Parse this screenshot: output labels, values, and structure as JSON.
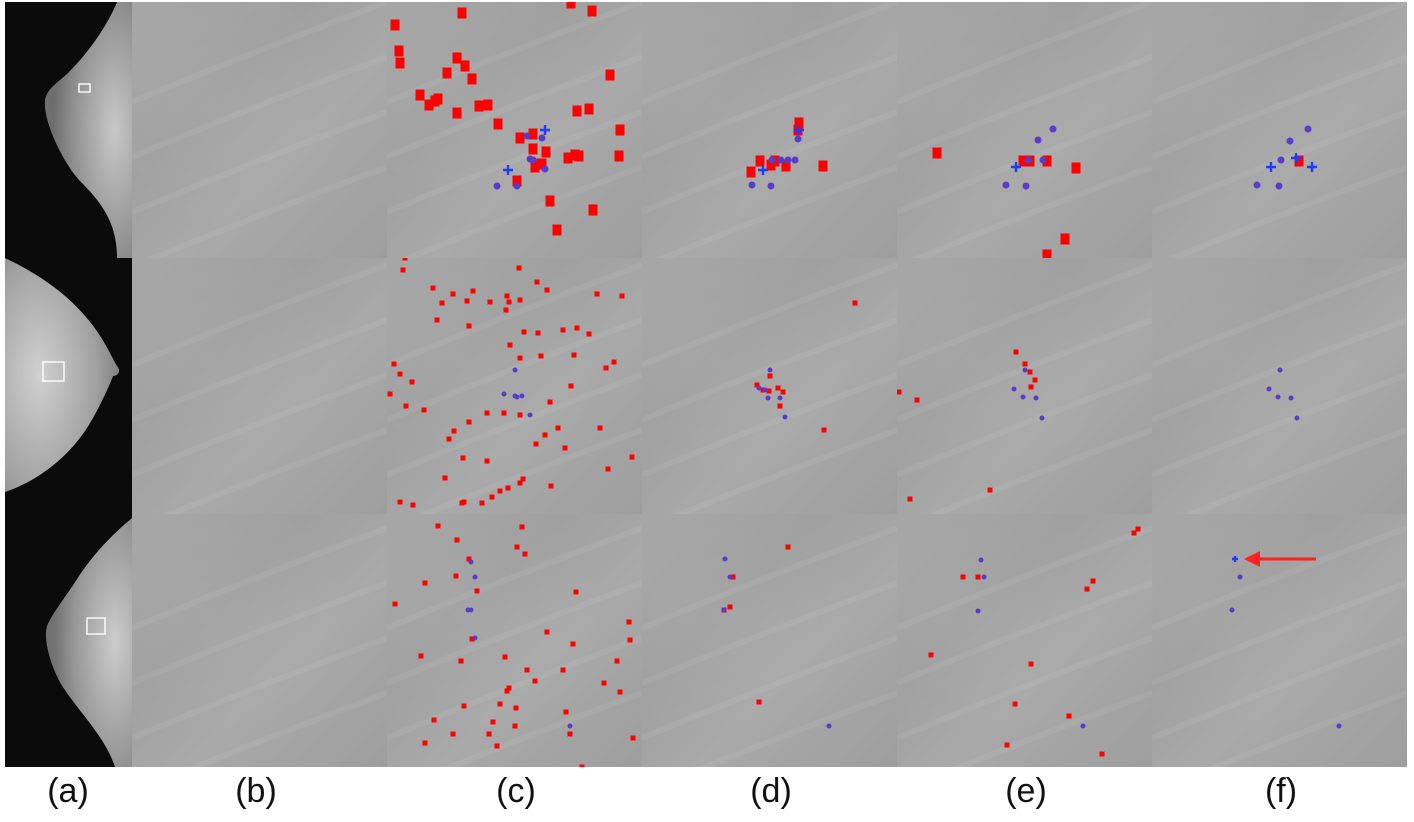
{
  "colors": {
    "candidate": "#ff0000",
    "truth_circle": "#5a3cc8",
    "truth_cross": "#1e3cff",
    "arrow": "#ff2020"
  },
  "labels": [
    "(a)",
    "(b)",
    "(c)",
    "(d)",
    "(e)",
    "(f)"
  ],
  "rows": [
    {
      "c": {
        "red": [
          [
            8,
            22
          ],
          [
            12,
            48
          ],
          [
            13,
            60
          ],
          [
            75,
            10
          ],
          [
            70,
            55
          ],
          [
            60,
            70
          ],
          [
            33,
            92
          ],
          [
            42,
            102
          ],
          [
            51,
            96
          ],
          [
            70,
            110
          ],
          [
            78,
            63
          ],
          [
            48,
            98
          ],
          [
            85,
            76
          ],
          [
            101,
            102
          ],
          [
            92,
            103
          ],
          [
            111,
            121
          ],
          [
            133,
            135
          ],
          [
            146,
            146
          ],
          [
            159,
            149
          ],
          [
            190,
            108
          ],
          [
            146,
            131
          ],
          [
            154,
            161
          ],
          [
            181,
            155
          ],
          [
            155,
            161
          ],
          [
            192,
            153
          ],
          [
            163,
            198
          ],
          [
            223,
            72
          ],
          [
            232,
            153
          ],
          [
            188,
            152
          ],
          [
            170,
            227
          ],
          [
            202,
            106
          ],
          [
            206,
            207
          ],
          [
            233,
            127
          ],
          [
            130,
            178
          ],
          [
            184,
            0
          ],
          [
            205,
            8
          ],
          [
            148,
            164
          ]
        ],
        "circ": [
          [
            155,
            136
          ],
          [
            146,
            158
          ],
          [
            143,
            157
          ],
          [
            158,
            167
          ],
          [
            140,
            134
          ],
          [
            110,
            184
          ],
          [
            130,
            184
          ]
        ],
        "cross": [
          [
            158,
            128
          ],
          [
            121,
            168
          ]
        ]
      },
      "d": {
        "red": [
          [
            157,
            120
          ],
          [
            109,
            169
          ],
          [
            118,
            158
          ],
          [
            129,
            162
          ],
          [
            144,
            163
          ],
          [
            156,
            127
          ],
          [
            181,
            163
          ],
          [
            133,
            158
          ]
        ],
        "circ": [
          [
            156,
            137
          ],
          [
            146,
            158
          ],
          [
            153,
            158
          ],
          [
            130,
            158
          ],
          [
            139,
            158
          ],
          [
            110,
            183
          ],
          [
            129,
            184
          ]
        ],
        "cross": [
          [
            157,
            128
          ],
          [
            121,
            168
          ]
        ]
      },
      "e": {
        "red": [
          [
            40,
            150
          ],
          [
            126,
            158
          ],
          [
            133,
            158
          ],
          [
            150,
            158
          ],
          [
            179,
            165
          ],
          [
            168,
            236
          ],
          [
            150,
            252
          ]
        ],
        "circ": [
          [
            156,
            127
          ],
          [
            141,
            138
          ],
          [
            131,
            158
          ],
          [
            146,
            158
          ],
          [
            109,
            183
          ],
          [
            129,
            184
          ]
        ],
        "cross": [
          [
            119,
            165
          ]
        ]
      },
      "f": {
        "red": [
          [
            147,
            158
          ]
        ],
        "circ": [
          [
            156,
            127
          ],
          [
            138,
            139
          ],
          [
            129,
            158
          ],
          [
            105,
            183
          ],
          [
            127,
            184
          ]
        ],
        "cross": [
          [
            119,
            165
          ],
          [
            144,
            156
          ],
          [
            160,
            165
          ]
        ]
      }
    },
    {
      "c": {
        "red": [
          [
            18,
            0
          ],
          [
            16,
            12
          ],
          [
            46,
            30
          ],
          [
            66,
            36
          ],
          [
            55,
            45
          ],
          [
            86,
            33
          ],
          [
            132,
            10
          ],
          [
            120,
            38
          ],
          [
            150,
            24
          ],
          [
            119,
            52
          ],
          [
            133,
            42
          ],
          [
            160,
            32
          ],
          [
            210,
            36
          ],
          [
            235,
            38
          ],
          [
            50,
            62
          ],
          [
            82,
            68
          ],
          [
            137,
            74
          ],
          [
            151,
            75
          ],
          [
            176,
            72
          ],
          [
            190,
            70
          ],
          [
            202,
            76
          ],
          [
            123,
            87
          ],
          [
            133,
            100
          ],
          [
            154,
            98
          ],
          [
            7,
            106
          ],
          [
            13,
            116
          ],
          [
            25,
            124
          ],
          [
            3,
            136
          ],
          [
            19,
            148
          ],
          [
            37,
            152
          ],
          [
            187,
            97
          ],
          [
            227,
            104
          ],
          [
            219,
            110
          ],
          [
            184,
            128
          ],
          [
            163,
            144
          ],
          [
            133,
            157
          ],
          [
            117,
            155
          ],
          [
            100,
            155
          ],
          [
            82,
            164
          ],
          [
            67,
            173
          ],
          [
            62,
            181
          ],
          [
            158,
            177
          ],
          [
            171,
            170
          ],
          [
            213,
            170
          ],
          [
            149,
            186
          ],
          [
            76,
            200
          ],
          [
            178,
            190
          ],
          [
            100,
            203
          ],
          [
            245,
            199
          ],
          [
            221,
            211
          ],
          [
            133,
            225
          ],
          [
            164,
            228
          ],
          [
            121,
            230
          ],
          [
            105,
            239
          ],
          [
            13,
            244
          ],
          [
            26,
            247
          ],
          [
            77,
            244
          ],
          [
            95,
            245
          ],
          [
            136,
            221
          ],
          [
            58,
            220
          ],
          [
            75,
            245
          ],
          [
            113,
            233
          ],
          [
            80,
            43
          ],
          [
            103,
            44
          ],
          [
            122,
            44
          ]
        ],
        "circ": [
          [
            128,
            112
          ],
          [
            117,
            136
          ],
          [
            128,
            138
          ],
          [
            143,
            157
          ],
          [
            135,
            138
          ],
          [
            130,
            139
          ]
        ],
        "cross": []
      },
      "d": {
        "red": [
          [
            213,
            45
          ],
          [
            115,
            127
          ],
          [
            121,
            132
          ],
          [
            136,
            130
          ],
          [
            141,
            134
          ],
          [
            128,
            118
          ],
          [
            138,
            148
          ],
          [
            127,
            133
          ],
          [
            182,
            172
          ]
        ],
        "circ": [
          [
            128,
            112
          ],
          [
            123,
            132
          ],
          [
            126,
            140
          ],
          [
            138,
            140
          ],
          [
            143,
            159
          ],
          [
            117,
            130
          ]
        ],
        "cross": []
      },
      "e": {
        "red": [
          [
            119,
            94
          ],
          [
            128,
            106
          ],
          [
            133,
            114
          ],
          [
            138,
            122
          ],
          [
            2,
            134
          ],
          [
            20,
            142
          ],
          [
            13,
            241
          ],
          [
            93,
            232
          ],
          [
            134,
            129
          ]
        ],
        "circ": [
          [
            128,
            112
          ],
          [
            117,
            131
          ],
          [
            126,
            139
          ],
          [
            139,
            140
          ],
          [
            145,
            160
          ]
        ],
        "cross": []
      },
      "f": {
        "red": [],
        "circ": [
          [
            128,
            112
          ],
          [
            117,
            131
          ],
          [
            126,
            139
          ],
          [
            139,
            140
          ],
          [
            145,
            160
          ]
        ],
        "cross": []
      }
    },
    {
      "c": {
        "red": [
          [
            51,
            12
          ],
          [
            70,
            26
          ],
          [
            69,
            62
          ],
          [
            82,
            45
          ],
          [
            8,
            90
          ],
          [
            38,
            69
          ],
          [
            130,
            33
          ],
          [
            138,
            40
          ],
          [
            135,
            13
          ],
          [
            90,
            77
          ],
          [
            189,
            78
          ],
          [
            242,
            108
          ],
          [
            243,
            126
          ],
          [
            160,
            118
          ],
          [
            186,
            130
          ],
          [
            230,
            147
          ],
          [
            34,
            142
          ],
          [
            74,
            147
          ],
          [
            85,
            125
          ],
          [
            118,
            143
          ],
          [
            140,
            156
          ],
          [
            148,
            167
          ],
          [
            122,
            174
          ],
          [
            176,
            156
          ],
          [
            120,
            177
          ],
          [
            113,
            190
          ],
          [
            77,
            192
          ],
          [
            47,
            206
          ],
          [
            102,
            220
          ],
          [
            129,
            194
          ],
          [
            106,
            208
          ],
          [
            128,
            212
          ],
          [
            110,
            232
          ],
          [
            66,
            220
          ],
          [
            38,
            229
          ],
          [
            233,
            178
          ],
          [
            246,
            224
          ],
          [
            183,
            220
          ],
          [
            195,
            253
          ],
          [
            217,
            169
          ],
          [
            179,
            198
          ]
        ],
        "circ": [
          [
            84,
            48
          ],
          [
            88,
            63
          ],
          [
            81,
            96
          ],
          [
            88,
            124
          ],
          [
            84,
            96
          ],
          [
            183,
            212
          ]
        ],
        "cross": []
      },
      "d": {
        "red": [
          [
            146,
            33
          ],
          [
            117,
            188
          ],
          [
            88,
            93
          ],
          [
            91,
            63
          ],
          [
            82,
            96
          ]
        ],
        "circ": [
          [
            83,
            45
          ],
          [
            88,
            63
          ],
          [
            82,
            96
          ],
          [
            187,
            212
          ]
        ],
        "cross": []
      },
      "e": {
        "red": [
          [
            66,
            63
          ],
          [
            81,
            63
          ],
          [
            34,
            141
          ],
          [
            134,
            150
          ],
          [
            118,
            190
          ],
          [
            172,
            202
          ],
          [
            110,
            231
          ],
          [
            205,
            240
          ],
          [
            196,
            67
          ],
          [
            190,
            75
          ],
          [
            241,
            15
          ],
          [
            237,
            19
          ]
        ],
        "circ": [
          [
            84,
            46
          ],
          [
            87,
            63
          ],
          [
            81,
            97
          ],
          [
            186,
            212
          ]
        ],
        "cross": []
      },
      "f": {
        "red": [],
        "circ": [
          [
            88,
            63
          ],
          [
            80,
            96
          ],
          [
            187,
            212
          ]
        ],
        "cross": [
          [
            83,
            45
          ]
        ]
      }
    }
  ]
}
